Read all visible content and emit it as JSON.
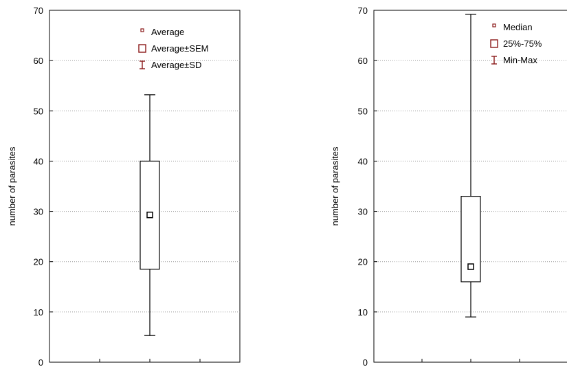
{
  "chart_data": [
    {
      "type": "box",
      "ylabel": "number of parasites",
      "ylim": [
        0,
        70
      ],
      "yticks": [
        0,
        10,
        20,
        30,
        40,
        50,
        60,
        70
      ],
      "grid": true,
      "legend_position": "top-right",
      "box": {
        "center": 29.3,
        "box_low": 18.5,
        "box_high": 40,
        "whisker_low": 5.3,
        "whisker_high": 53.2
      },
      "legend": [
        {
          "symbol": "point",
          "label": "Average"
        },
        {
          "symbol": "box",
          "label": "Average±SEM"
        },
        {
          "symbol": "whisker",
          "label": "Average±SD"
        }
      ]
    },
    {
      "type": "box",
      "ylabel": "number of parasites",
      "ylim": [
        0,
        70
      ],
      "yticks": [
        0,
        10,
        20,
        30,
        40,
        50,
        60,
        70
      ],
      "grid": true,
      "legend_position": "top-right",
      "box": {
        "center": 19,
        "box_low": 16,
        "box_high": 33,
        "whisker_low": 9,
        "whisker_high": 69.2
      },
      "legend": [
        {
          "symbol": "point",
          "label": "Median"
        },
        {
          "symbol": "box",
          "label": "25%-75%"
        },
        {
          "symbol": "whisker",
          "label": "Min-Max"
        }
      ]
    }
  ]
}
